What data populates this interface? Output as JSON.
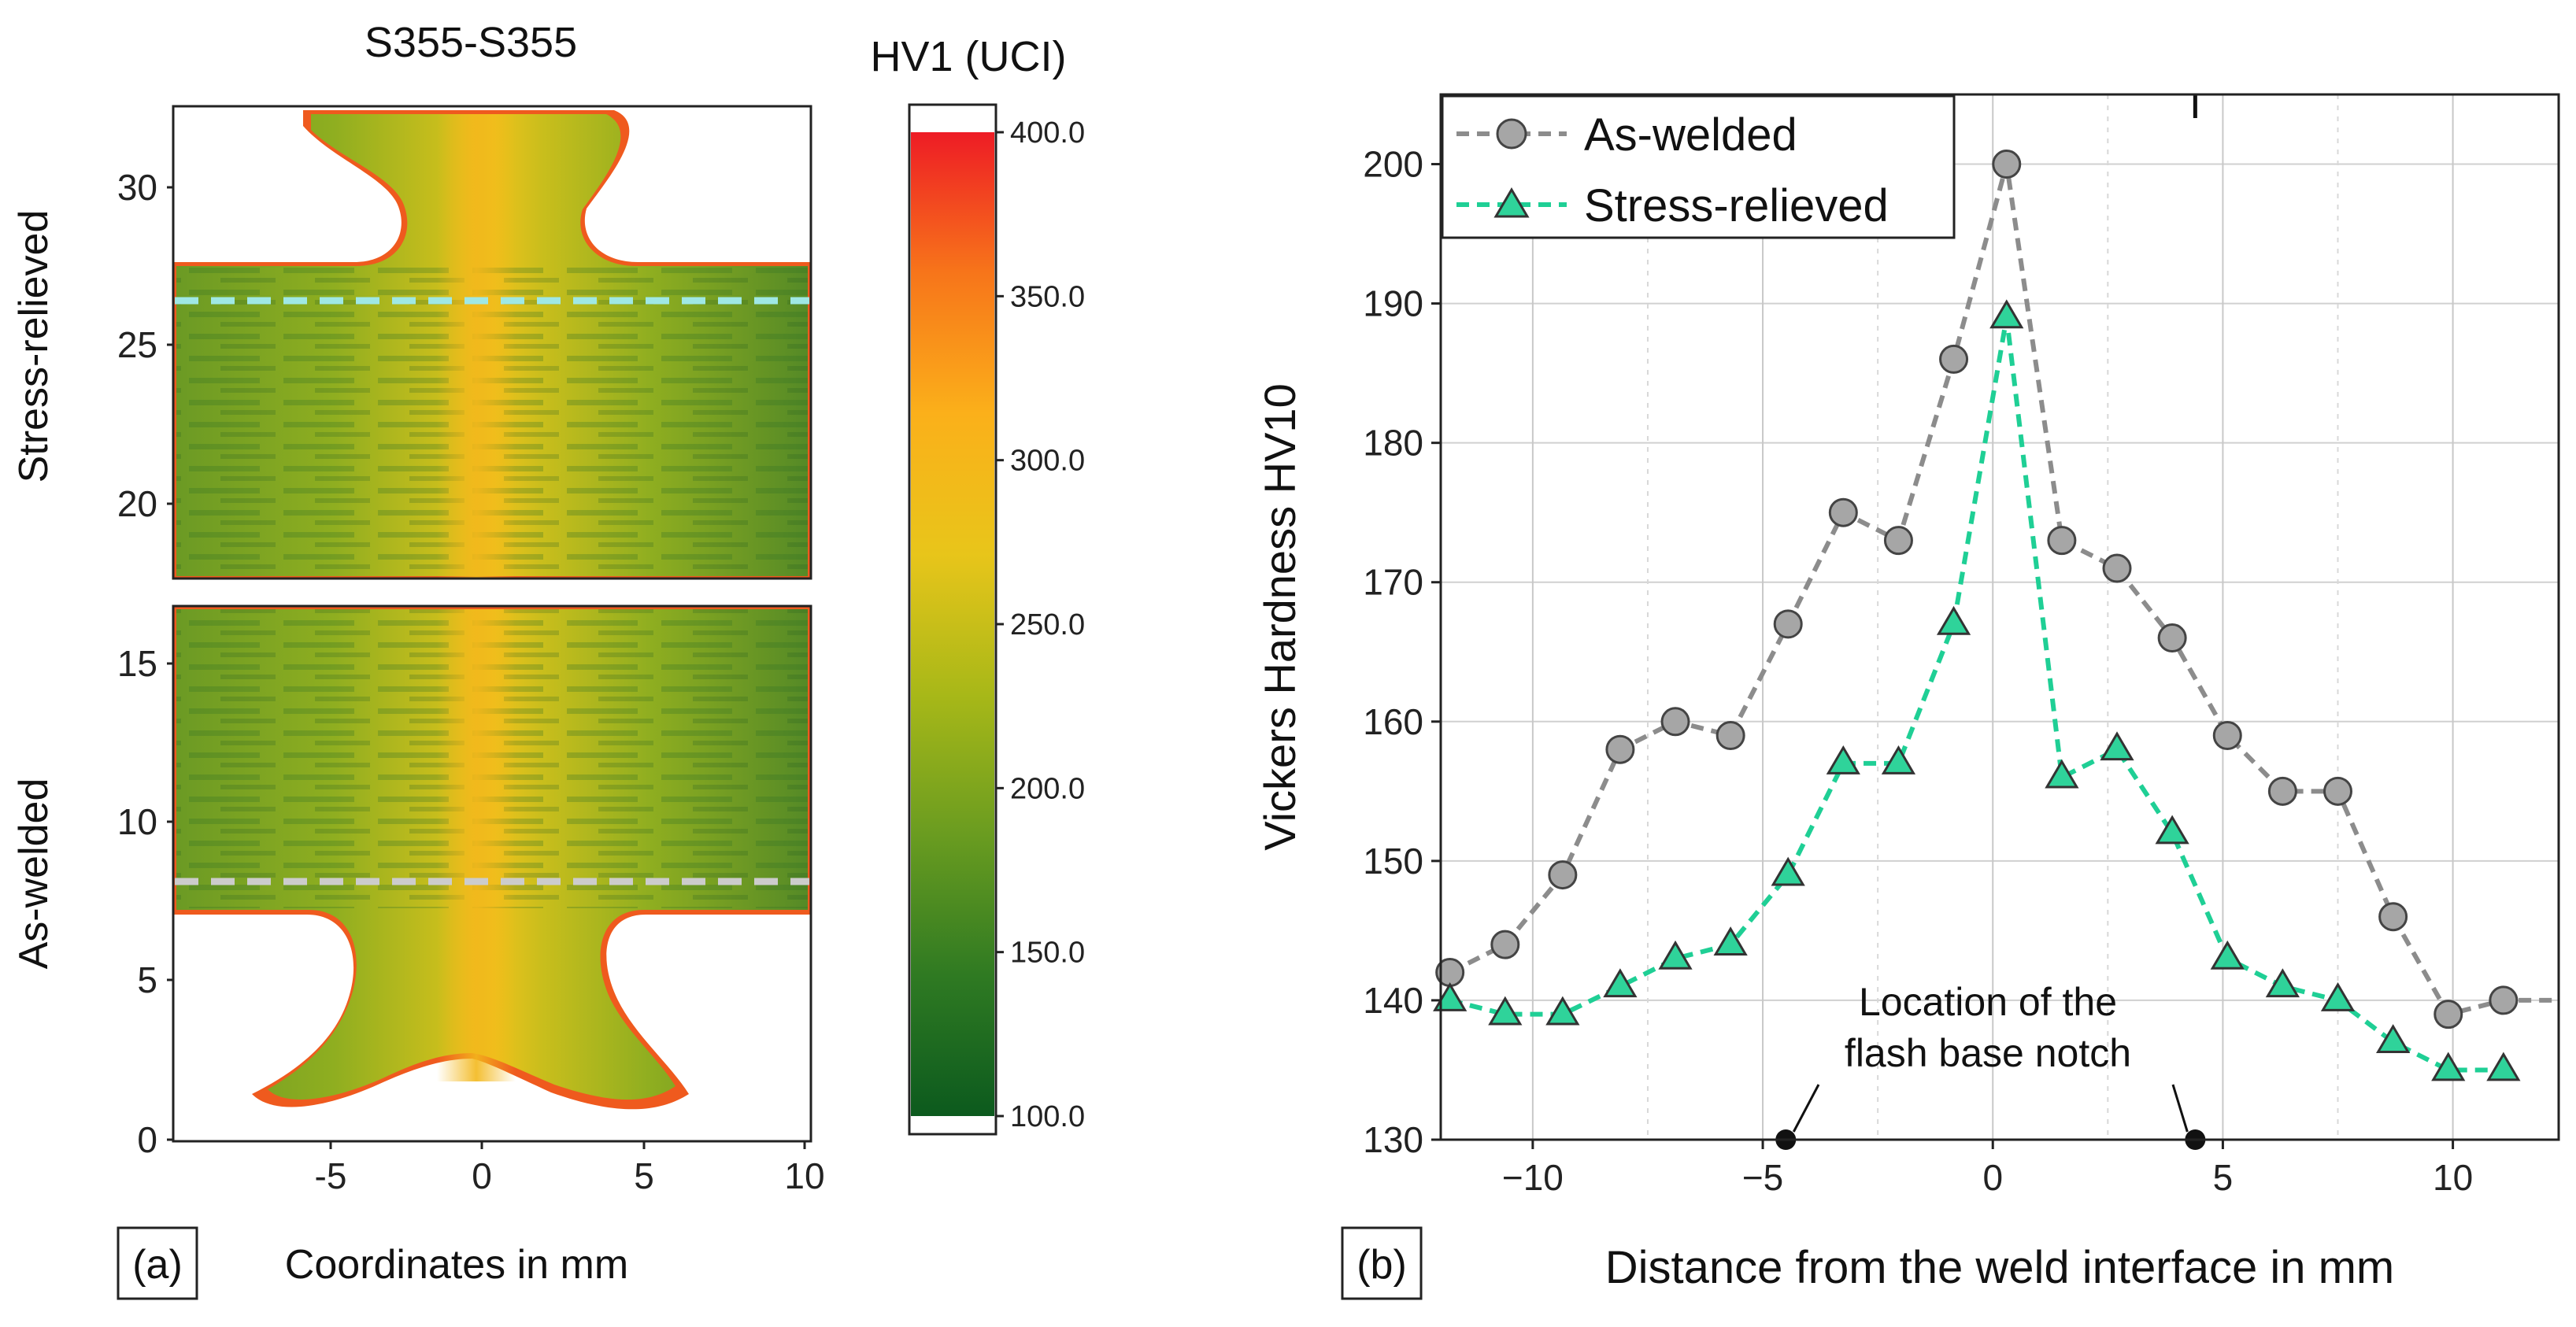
{
  "panel_a": {
    "title": "S355-S355",
    "colorbar_title": "HV1 (UCI)",
    "panel_label": "(a)",
    "xlabel": "Coordinates in mm",
    "xticks": [
      "-5",
      "0",
      "5",
      "10"
    ],
    "top": {
      "ylabel": "Stress-relieved",
      "yticks": [
        "20",
        "25",
        "30"
      ],
      "line_color": "#9fe8e4"
    },
    "bottom": {
      "ylabel": "As-welded",
      "yticks": [
        "0",
        "5",
        "10",
        "15"
      ],
      "line_color": "#cccccc"
    },
    "colorbar": {
      "min": 100,
      "max": 400,
      "ticks": [
        "100.0",
        "150.0",
        "200.0",
        "250.0",
        "300.0",
        "350.0",
        "400.0"
      ],
      "colors": [
        "#0c5a1e",
        "#2f7a22",
        "#6a9c20",
        "#a8b818",
        "#e8c51a",
        "#fbb01a",
        "#f7751a",
        "#ee1c25"
      ]
    }
  },
  "chart_data": {
    "type": "line",
    "panel_label": "(b)",
    "xlabel": "Distance from the weld interface in mm",
    "ylabel": "Vickers Hardness HV10",
    "xlim": [
      -12,
      12.3
    ],
    "ylim": [
      130,
      205
    ],
    "xticks": [
      -10,
      -5,
      0,
      5,
      10
    ],
    "yticks": [
      130,
      140,
      150,
      160,
      170,
      180,
      190,
      200
    ],
    "xtick_labels": [
      "−10",
      "−5",
      "0",
      "5",
      "10"
    ],
    "ytick_labels": [
      "130",
      "140",
      "150",
      "160",
      "170",
      "180",
      "190",
      "200"
    ],
    "grid": true,
    "legend_position": "top-left",
    "series": [
      {
        "name": "As-welded",
        "marker": "circle",
        "color": "#8c8c8c",
        "marker_fill": "#a6a6a6",
        "x": [
          -11.8,
          -10.6,
          -9.35,
          -8.1,
          -6.9,
          -5.7,
          -4.45,
          -3.25,
          -2.05,
          -0.85,
          0.3,
          1.5,
          2.7,
          3.9,
          5.1,
          6.3,
          7.5,
          8.7,
          9.9,
          11.1
        ],
        "y": [
          142,
          144,
          149,
          158,
          160,
          159,
          167,
          175,
          173,
          186,
          200,
          173,
          171,
          166,
          159,
          155,
          155,
          146,
          139,
          140
        ],
        "tail_x": 12.3,
        "tail_y": 140
      },
      {
        "name": "Stress-relieved",
        "marker": "triangle",
        "color": "#1fcf95",
        "marker_fill": "#2fd39a",
        "x": [
          -11.8,
          -10.6,
          -9.35,
          -8.1,
          -6.9,
          -5.7,
          -4.45,
          -3.25,
          -2.05,
          -0.85,
          0.3,
          1.5,
          2.7,
          3.9,
          5.1,
          6.3,
          7.5,
          8.7,
          9.9,
          11.1
        ],
        "y": [
          140,
          139,
          139,
          141,
          143,
          144,
          149,
          157,
          157,
          167,
          189,
          156,
          158,
          152,
          143,
          141,
          140,
          137,
          135,
          135
        ],
        "tail_x": null,
        "tail_y": null
      }
    ],
    "annotation": {
      "text_lines": [
        "Location of the",
        "flash base notch"
      ],
      "points_x": [
        -4.5,
        4.4
      ],
      "points_y": [
        130,
        130
      ]
    }
  }
}
